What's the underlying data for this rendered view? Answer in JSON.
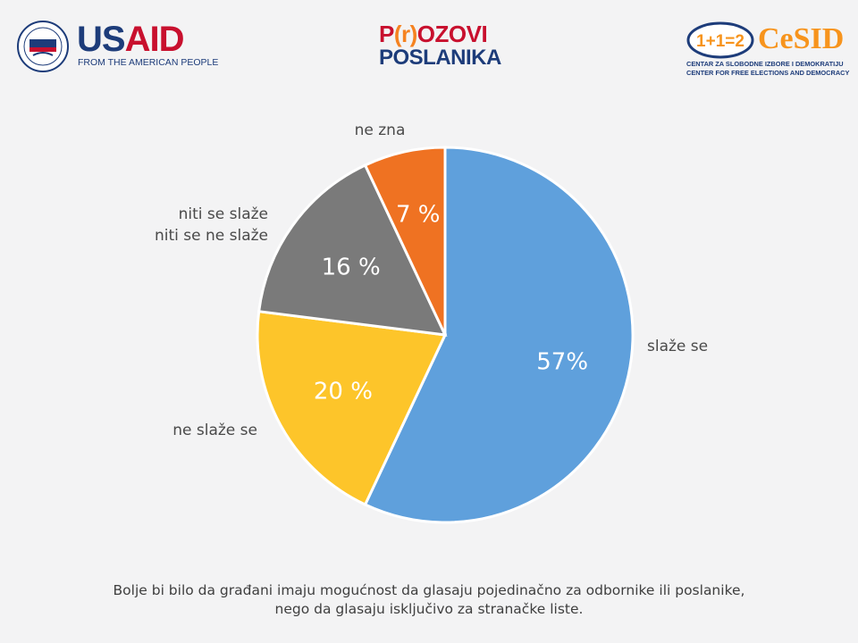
{
  "logos": {
    "usaid": {
      "word_us": "US",
      "word_aid": "AID",
      "tagline": "FROM THE AMERICAN PEOPLE"
    },
    "center": {
      "line1_a": "P",
      "line1_b": "(r)",
      "line1_c": "OZOVI",
      "line2": "POSLANIKA"
    },
    "cesid": {
      "badge": "1+1=2",
      "name": "CeSID",
      "sub1": "CENTAR ZA SLOBODNE IZBORE I DEMOKRATIJU",
      "sub2": "CENTER FOR FREE ELECTIONS AND DEMOCRACY"
    },
    "colors": {
      "navy": "#1d3c7a",
      "red": "#c8102e",
      "orange": "#f7941d"
    }
  },
  "chart_data": {
    "type": "pie",
    "slices": [
      {
        "label": "slaže se",
        "value": 57,
        "value_label": "57%",
        "color": "#5fa0dc"
      },
      {
        "label": "ne slaže se",
        "value": 20,
        "value_label": "20 %",
        "color": "#fdc52a"
      },
      {
        "label": "niti se slaže\nniti se ne slaže",
        "value": 16,
        "value_label": "16 %",
        "color": "#7a7a7a"
      },
      {
        "label": "ne zna",
        "value": 7,
        "value_label": "7 %",
        "color": "#ef7222"
      }
    ],
    "start": "12 o'clock",
    "direction": "clockwise"
  },
  "caption": {
    "line1": "Bolje bi bilo da građani imaju mogućnost da glasaju pojedinačno za odbornike ili poslanike,",
    "line2": "nego da glasaju isključivo za stranačke liste."
  }
}
